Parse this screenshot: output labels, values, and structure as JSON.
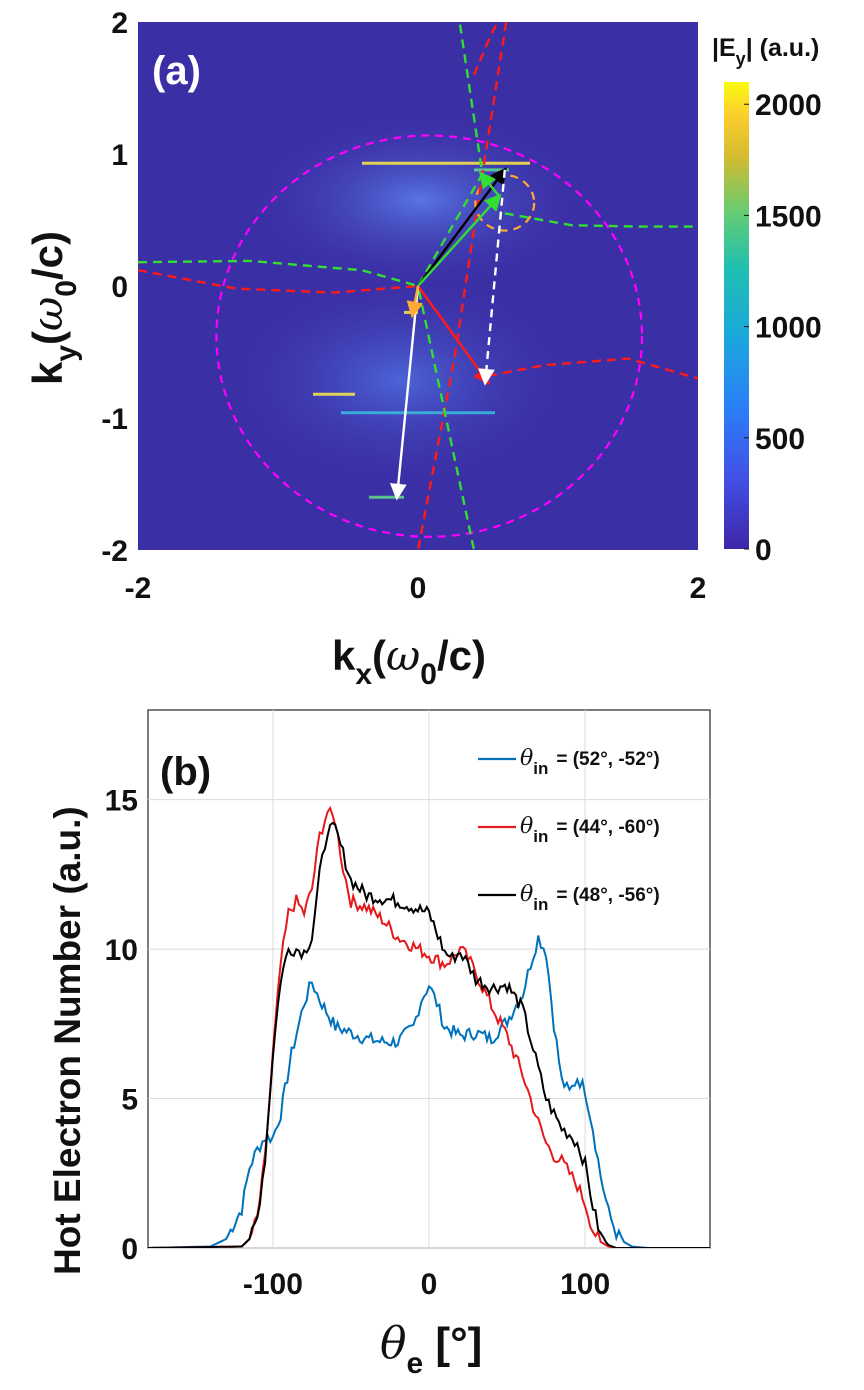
{
  "chart_data": [
    {
      "type": "heatmap",
      "panel_label": "(a)",
      "xlabel_main": "k",
      "xlabel_sub": "x",
      "xlabel_paren_open": "(",
      "xlabel_omega": "ω",
      "xlabel_omega_sub": "0",
      "xlabel_tail": "/c)",
      "ylabel_main": "k",
      "ylabel_sub": "y",
      "ylabel_paren_open": "(",
      "ylabel_omega": "ω",
      "ylabel_omega_sub": "0",
      "ylabel_tail": "/c)",
      "xlim": [
        -2,
        2
      ],
      "ylim": [
        -2,
        2
      ],
      "xticks": [
        -2,
        0,
        2
      ],
      "yticks": [
        -2,
        -1,
        0,
        1,
        2
      ],
      "colorbar": {
        "title_main": "|E",
        "title_sub": "y",
        "title_tail": "| (a.u.)",
        "range": [
          0,
          2100
        ],
        "ticks": [
          0,
          500,
          1000,
          1500,
          2000
        ]
      },
      "colors": {
        "background": "#3b2fa6",
        "magenta": "#ff00ff",
        "red": "#ff1a1a",
        "green": "#33dd33",
        "orange": "#ffaa33",
        "black": "#000000",
        "white": "#ffffff"
      },
      "circles": [
        {
          "name": "magenta-circle",
          "center": [
            0.08,
            -0.38
          ],
          "radius": 1.52,
          "color": "magenta"
        },
        {
          "name": "orange-circle",
          "center": [
            0.62,
            0.63
          ],
          "radius": 0.21,
          "color": "orange"
        }
      ],
      "curves": [
        {
          "name": "red-curve-upper",
          "color": "red",
          "points": [
            [
              0.4,
              1.6
            ],
            [
              0.52,
              1.9
            ],
            [
              0.62,
              2.1
            ]
          ]
        },
        {
          "name": "red-line-steep",
          "color": "red",
          "points": [
            [
              0.63,
              2.0
            ],
            [
              0.46,
              0.85
            ],
            [
              0.26,
              -0.55
            ],
            [
              0.0,
              -2.0
            ]
          ]
        },
        {
          "name": "red-curve-left",
          "color": "red",
          "points": [
            [
              -2.0,
              0.12
            ],
            [
              -1.3,
              -0.02
            ],
            [
              -0.6,
              -0.05
            ],
            [
              0.0,
              0.0
            ]
          ]
        },
        {
          "name": "red-curve-right",
          "color": "red",
          "points": [
            [
              0.5,
              -0.68
            ],
            [
              0.9,
              -0.6
            ],
            [
              1.5,
              -0.55
            ],
            [
              2.0,
              -0.7
            ]
          ]
        },
        {
          "name": "green-line-steep",
          "color": "green",
          "points": [
            [
              0.3,
              1.98
            ],
            [
              0.46,
              0.85
            ],
            [
              0.0,
              0.0
            ],
            [
              0.4,
              -2.0
            ]
          ]
        },
        {
          "name": "green-curve-left",
          "color": "green",
          "points": [
            [
              -2.0,
              0.18
            ],
            [
              -1.2,
              0.19
            ],
            [
              -0.4,
              0.12
            ],
            [
              0.0,
              0.0
            ]
          ]
        },
        {
          "name": "green-curve-right",
          "color": "green",
          "points": [
            [
              0.62,
              0.55
            ],
            [
              1.1,
              0.46
            ],
            [
              1.6,
              0.45
            ],
            [
              2.0,
              0.45
            ]
          ]
        }
      ],
      "arrows": [
        {
          "name": "black-arrow",
          "color": "black",
          "from": [
            0.0,
            0.0
          ],
          "to": [
            0.62,
            0.88
          ],
          "dashed": false
        },
        {
          "name": "green-arrow",
          "color": "green",
          "from": [
            0.0,
            0.0
          ],
          "to": [
            0.58,
            0.68
          ],
          "dashed": false
        },
        {
          "name": "red-arrow",
          "color": "red",
          "from": [
            0.0,
            0.0
          ],
          "to": [
            0.5,
            -0.73
          ],
          "dashed": false
        },
        {
          "name": "white-arrow",
          "color": "white",
          "from": [
            0.0,
            0.0
          ],
          "to": [
            -0.15,
            -1.6
          ],
          "dashed": false
        },
        {
          "name": "white-dashed-arrow",
          "color": "white",
          "from": [
            0.62,
            0.88
          ],
          "to": [
            0.48,
            -0.73
          ],
          "dashed": true
        },
        {
          "name": "orange-arrow",
          "color": "orange",
          "from": [
            0.0,
            0.0
          ],
          "to": [
            -0.04,
            -0.22
          ],
          "dashed": false
        },
        {
          "name": "green-small-arrow",
          "color": "green",
          "from": [
            0.58,
            0.68
          ],
          "to": [
            0.45,
            0.85
          ],
          "dashed": false
        }
      ],
      "bright_streaks": [
        {
          "ky": 0.93,
          "kx": [
            -0.4,
            0.8
          ],
          "intensity": 1.0
        },
        {
          "ky": 0.88,
          "kx": [
            0.4,
            0.65
          ],
          "intensity": 0.8
        },
        {
          "ky": -0.82,
          "kx": [
            -0.75,
            -0.45
          ],
          "intensity": 0.85
        },
        {
          "ky": -0.96,
          "kx": [
            -0.55,
            0.55
          ],
          "intensity": 0.5
        },
        {
          "ky": -1.6,
          "kx": [
            -0.35,
            -0.1
          ],
          "intensity": 0.75
        },
        {
          "ky": -0.2,
          "kx": [
            -0.1,
            0.0
          ],
          "intensity": 0.9
        }
      ]
    },
    {
      "type": "line",
      "panel_label": "(b)",
      "xlabel_main": "θ",
      "xlabel_sub": "e",
      "xlabel_tail": " [°]",
      "ylabel": "Hot Electron Number (a.u.)",
      "xlim": [
        -180,
        180
      ],
      "ylim": [
        0,
        18
      ],
      "xticks": [
        -100,
        0,
        100
      ],
      "yticks": [
        0,
        5,
        10,
        15
      ],
      "grid": true,
      "legend_position": "top-right",
      "series": [
        {
          "name": "θ_in = (52°, -52°)",
          "legend_symbol": "θ",
          "legend_sub": "in",
          "legend_value": "= (52°, -52°)",
          "color": "#0072bd",
          "x": [
            -180,
            -140,
            -130,
            -120,
            -115,
            -110,
            -105,
            -100,
            -95,
            -88,
            -80,
            -75,
            -70,
            -60,
            -50,
            -40,
            -30,
            -20,
            -10,
            -5,
            0,
            5,
            10,
            20,
            30,
            40,
            50,
            60,
            65,
            70,
            75,
            80,
            85,
            90,
            95,
            100,
            105,
            110,
            115,
            120,
            125,
            130,
            140,
            180
          ],
          "values": [
            0,
            0.05,
            0.3,
            1.3,
            2.7,
            3.3,
            3.7,
            3.7,
            4.5,
            6.5,
            8.2,
            8.9,
            8.3,
            7.4,
            7.2,
            7.0,
            6.9,
            6.9,
            7.4,
            8.3,
            8.8,
            8.2,
            7.4,
            7.1,
            7.2,
            7.0,
            7.6,
            8.5,
            9.5,
            10.4,
            9.9,
            7.5,
            5.6,
            5.2,
            5.7,
            5.3,
            4.0,
            2.4,
            1.2,
            0.5,
            0.2,
            0.05,
            0,
            0
          ]
        },
        {
          "name": "θ_in = (44°, -60°)",
          "legend_symbol": "θ",
          "legend_sub": "in",
          "legend_value": "= (44°, -60°)",
          "color": "#e41a1c",
          "x": [
            -180,
            -120,
            -115,
            -110,
            -105,
            -100,
            -95,
            -90,
            -85,
            -80,
            -75,
            -70,
            -65,
            -60,
            -55,
            -50,
            -40,
            -30,
            -20,
            -10,
            0,
            10,
            15,
            20,
            25,
            30,
            40,
            50,
            60,
            65,
            70,
            75,
            80,
            85,
            90,
            95,
            100,
            105,
            110,
            115,
            120,
            180
          ],
          "values": [
            0,
            0.05,
            0.3,
            1.0,
            3.0,
            6.5,
            9.5,
            11.2,
            11.6,
            11.2,
            12.0,
            13.8,
            14.6,
            14.3,
            12.7,
            11.6,
            11.4,
            11.0,
            10.4,
            10.1,
            9.8,
            9.5,
            9.7,
            10.0,
            9.7,
            9.2,
            8.1,
            7.1,
            5.8,
            5.0,
            4.2,
            3.5,
            3.1,
            2.9,
            2.5,
            2.1,
            1.5,
            0.6,
            0.2,
            0.05,
            0,
            0
          ]
        },
        {
          "name": "θ_in = (48°, -56°)",
          "legend_symbol": "θ",
          "legend_sub": "in",
          "legend_value": "= (48°, -56°)",
          "color": "#000000",
          "x": [
            -180,
            -120,
            -115,
            -110,
            -105,
            -100,
            -95,
            -90,
            -85,
            -80,
            -75,
            -70,
            -65,
            -60,
            -55,
            -50,
            -40,
            -30,
            -20,
            -10,
            0,
            10,
            15,
            20,
            25,
            30,
            40,
            50,
            60,
            65,
            70,
            75,
            80,
            85,
            90,
            95,
            100,
            105,
            110,
            115,
            120,
            180
          ],
          "values": [
            0,
            0.05,
            0.3,
            1.0,
            3.0,
            6.5,
            9.0,
            10.0,
            10.0,
            9.9,
            10.4,
            12.5,
            14.0,
            14.0,
            13.2,
            12.3,
            11.8,
            11.7,
            11.6,
            11.4,
            11.2,
            9.9,
            9.7,
            9.9,
            9.5,
            9.0,
            8.7,
            8.8,
            8.0,
            7.0,
            6.0,
            5.0,
            4.5,
            4.0,
            3.8,
            3.5,
            2.8,
            1.4,
            0.4,
            0.1,
            0,
            0
          ]
        }
      ]
    }
  ]
}
